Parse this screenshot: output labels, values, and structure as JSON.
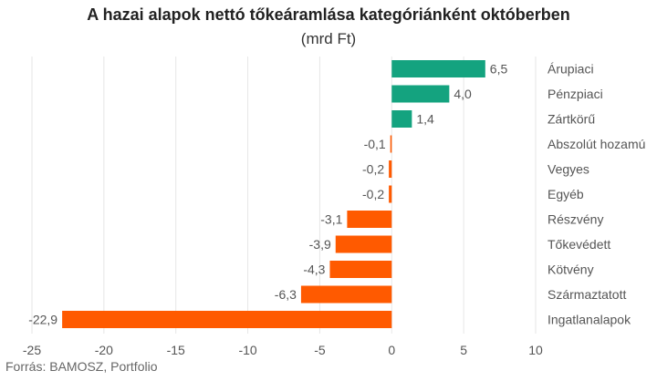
{
  "title": "A hazai alapok nettó tőkeáramlása kategóriánként októberben",
  "subtitle": "(mrd Ft)",
  "source": "Forrás: BAMOSZ, Portfolio",
  "colors": {
    "positive": "#14a37f",
    "negative": "#ff5a00",
    "grid": "#e6e6e6",
    "text": "#555555"
  },
  "chart_data": {
    "type": "bar",
    "orientation": "horizontal",
    "categories": [
      "Árupiaci",
      "Pénzpiaci",
      "Zártkörű",
      "Abszolút hozamú",
      "Vegyes",
      "Egyéb",
      "Részvény",
      "Tőkevédett",
      "Kötvény",
      "Származtatott",
      "Ingatlanalapok"
    ],
    "values": [
      6.5,
      4.0,
      1.4,
      -0.1,
      -0.2,
      -0.2,
      -3.1,
      -3.9,
      -4.3,
      -6.3,
      -22.9
    ],
    "value_labels": [
      "6,5",
      "4,0",
      "1,4",
      "-0,1",
      "-0,2",
      "-0,2",
      "-3,1",
      "-3,9",
      "-4,3",
      "-6,3",
      "-22,9"
    ],
    "xlim": [
      -25,
      10
    ],
    "xticks": [
      -25,
      -20,
      -15,
      -10,
      -5,
      0,
      5,
      10
    ],
    "xtick_labels": [
      "-25",
      "-20",
      "-15",
      "-10",
      "-5",
      "0",
      "5",
      "10"
    ],
    "grid": true,
    "legend": "none"
  }
}
